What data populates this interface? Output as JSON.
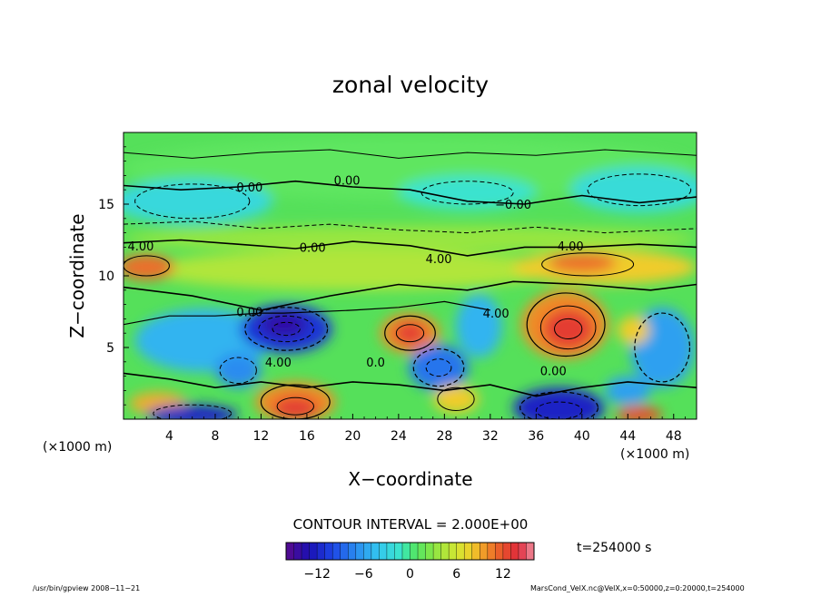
{
  "chart_data": {
    "type": "heatmap",
    "title": "zonal velocity",
    "xlabel": "X−coordinate",
    "ylabel": "Z−coordinate",
    "x_unit_left": "(×1000 m)",
    "x_unit_right": "(×1000 m)",
    "x_ticks": [
      "4",
      "8",
      "12",
      "16",
      "20",
      "24",
      "28",
      "32",
      "36",
      "40",
      "44",
      "48"
    ],
    "y_ticks": [
      "15",
      "10",
      "5"
    ],
    "xlim": [
      0,
      50
    ],
    "ylim": [
      0,
      20
    ],
    "contour_interval_text": "CONTOUR INTERVAL = 2.000E+00",
    "contour_labels": [
      {
        "text": "0.00",
        "x": 11,
        "z": 16.0
      },
      {
        "text": "0.00",
        "x": 19.5,
        "z": 16.5
      },
      {
        "text": "−0.00",
        "x": 34,
        "z": 14.8
      },
      {
        "text": "4.00",
        "x": 1.5,
        "z": 11.9
      },
      {
        "text": "0.00",
        "x": 16.5,
        "z": 11.8
      },
      {
        "text": "4.00",
        "x": 27.5,
        "z": 11.0
      },
      {
        "text": "4.00",
        "x": 39,
        "z": 11.9
      },
      {
        "text": "0.00",
        "x": 11,
        "z": 7.3
      },
      {
        "text": "4.00",
        "x": 32.5,
        "z": 7.2
      },
      {
        "text": "4.00",
        "x": 13.5,
        "z": 3.8
      },
      {
        "text": "0.0",
        "x": 22,
        "z": 3.8
      },
      {
        "text": "0.00",
        "x": 37.5,
        "z": 3.2
      }
    ],
    "features": [
      {
        "kind": "max",
        "x": 1.5,
        "z": 10.7,
        "value": 10
      },
      {
        "kind": "max",
        "x": 25,
        "z": 6,
        "value": 12
      },
      {
        "kind": "max",
        "x": 38.5,
        "z": 6.5,
        "value": 12
      },
      {
        "kind": "max",
        "x": 40,
        "z": 10.8,
        "value": 10
      },
      {
        "kind": "min",
        "x": 14.2,
        "z": 6.3,
        "value": -12
      },
      {
        "kind": "min",
        "x": 27.6,
        "z": 3.5,
        "value": -8
      },
      {
        "kind": "min",
        "x": 38,
        "z": 0.5,
        "value": -14
      },
      {
        "kind": "min",
        "x": 6,
        "z": 0.2,
        "value": -12
      }
    ],
    "colorbar": {
      "min": -16,
      "max": 16,
      "step": 1,
      "tick_labels": [
        "−12",
        "−6",
        "0",
        "6",
        "12"
      ],
      "tick_values": [
        -12,
        -6,
        0,
        6,
        12
      ]
    },
    "time_label": "t=254000 s",
    "footer_left": "/usr/bin/gpview   2008−11−21",
    "footer_right": "MarsCond_VelX.nc@VelX,x=0:50000,z=0:20000,t=254000"
  }
}
